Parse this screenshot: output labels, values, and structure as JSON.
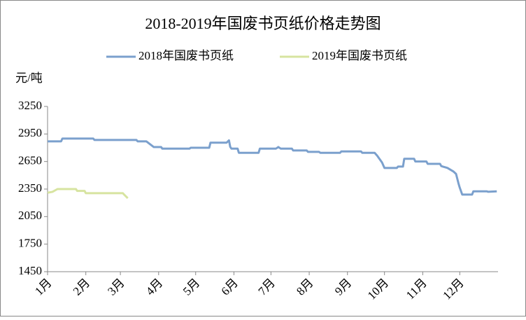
{
  "chart_data": {
    "type": "line",
    "title": "2018-2019年国废书页纸价格走势图",
    "y_label": "元/吨",
    "ylim": [
      1450,
      3250
    ],
    "yticks": [
      1450,
      1750,
      2050,
      2350,
      2650,
      2950,
      3250
    ],
    "xlim": [
      1,
      366
    ],
    "xticks": [
      {
        "value": 1,
        "label": "1月"
      },
      {
        "value": 32,
        "label": "2月"
      },
      {
        "value": 60,
        "label": "3月"
      },
      {
        "value": 91,
        "label": "4月"
      },
      {
        "value": 121,
        "label": "5月"
      },
      {
        "value": 152,
        "label": "6月"
      },
      {
        "value": 182,
        "label": "7月"
      },
      {
        "value": 213,
        "label": "8月"
      },
      {
        "value": 244,
        "label": "9月"
      },
      {
        "value": 274,
        "label": "10月"
      },
      {
        "value": 305,
        "label": "11月"
      },
      {
        "value": 335,
        "label": "12月"
      }
    ],
    "grid": false,
    "legend": "top",
    "series": [
      {
        "name": "2018年国废书页纸",
        "color": "#7ba0cd",
        "x": [
          1,
          12,
          13,
          38,
          39,
          73,
          74,
          81,
          87,
          93,
          94,
          116,
          117,
          132,
          133,
          146,
          148,
          149,
          150,
          155,
          156,
          172,
          173,
          186,
          188,
          190,
          199,
          200,
          211,
          212,
          221,
          222,
          238,
          239,
          255,
          256,
          266,
          268,
          272,
          274,
          284,
          285,
          289,
          290,
          298,
          299,
          308,
          309,
          319,
          320,
          325,
          330,
          332,
          334,
          335,
          337,
          345,
          346,
          357,
          358,
          365
        ],
        "values": [
          2870,
          2870,
          2900,
          2900,
          2885,
          2885,
          2870,
          2870,
          2808,
          2808,
          2790,
          2790,
          2800,
          2800,
          2855,
          2855,
          2880,
          2810,
          2790,
          2790,
          2745,
          2745,
          2790,
          2790,
          2808,
          2790,
          2790,
          2770,
          2770,
          2755,
          2755,
          2745,
          2745,
          2760,
          2760,
          2745,
          2745,
          2715,
          2640,
          2580,
          2580,
          2595,
          2595,
          2680,
          2680,
          2650,
          2650,
          2625,
          2625,
          2600,
          2580,
          2540,
          2515,
          2410,
          2365,
          2290,
          2290,
          2325,
          2325,
          2320,
          2325
        ]
      },
      {
        "name": "2019年国废书页纸",
        "color": "#d7e4a0",
        "x": [
          1,
          5,
          9,
          24,
          25,
          31,
          32,
          62,
          63,
          66
        ],
        "values": [
          2310,
          2320,
          2350,
          2350,
          2330,
          2330,
          2305,
          2305,
          2290,
          2250
        ]
      }
    ]
  }
}
